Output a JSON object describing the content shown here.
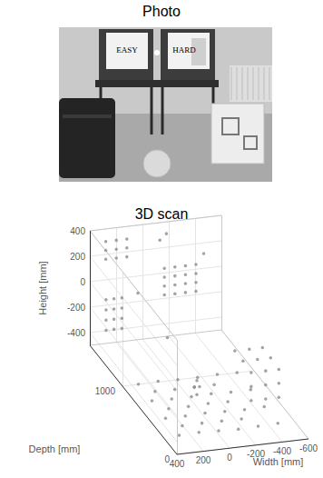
{
  "photo": {
    "title": "Photo",
    "board_labels": [
      "EASY",
      "HARD"
    ]
  },
  "chart_data": {
    "type": "scatter3d",
    "title": "3D scan",
    "xlabel": "Width [mm]",
    "ylabel": "Depth [mm]",
    "zlabel": "Height [mm]",
    "xlim": [
      -600,
      400
    ],
    "xticks": [
      400,
      200,
      0,
      -200,
      -400,
      -600
    ],
    "ylim": [
      0,
      1600
    ],
    "yticks": [
      0,
      1000
    ],
    "zlim": [
      -500,
      400
    ],
    "zticks": [
      -400,
      -200,
      0,
      200,
      400
    ],
    "grid": true,
    "color": "#8c8c8c",
    "marker": "circle",
    "points": [
      [
        300,
        200,
        -470
      ],
      [
        150,
        200,
        -465
      ],
      [
        0,
        200,
        -470
      ],
      [
        -150,
        200,
        -475
      ],
      [
        -300,
        200,
        -470
      ],
      [
        -450,
        200,
        -465
      ],
      [
        300,
        450,
        -470
      ],
      [
        150,
        450,
        -470
      ],
      [
        0,
        450,
        -465
      ],
      [
        -150,
        450,
        -470
      ],
      [
        -300,
        450,
        -475
      ],
      [
        -450,
        450,
        -470
      ],
      [
        300,
        700,
        -465
      ],
      [
        150,
        700,
        -470
      ],
      [
        0,
        700,
        -470
      ],
      [
        -150,
        700,
        -465
      ],
      [
        -300,
        700,
        -470
      ],
      [
        -450,
        700,
        -470
      ],
      [
        300,
        950,
        -470
      ],
      [
        150,
        950,
        -465
      ],
      [
        0,
        950,
        -470
      ],
      [
        -150,
        950,
        -470
      ],
      [
        -300,
        950,
        -465
      ],
      [
        -450,
        950,
        -470
      ],
      [
        225,
        325,
        -470
      ],
      [
        75,
        325,
        -468
      ],
      [
        -75,
        325,
        -470
      ],
      [
        -225,
        325,
        -472
      ],
      [
        225,
        575,
        -470
      ],
      [
        75,
        575,
        -470
      ],
      [
        -75,
        575,
        -466
      ],
      [
        -225,
        575,
        -470
      ],
      [
        225,
        825,
        -468
      ],
      [
        75,
        825,
        -470
      ],
      [
        -75,
        825,
        -470
      ],
      [
        -225,
        825,
        -470
      ],
      [
        380,
        1350,
        -250
      ],
      [
        320,
        1350,
        -250
      ],
      [
        260,
        1350,
        -250
      ],
      [
        380,
        1350,
        -170
      ],
      [
        320,
        1350,
        -170
      ],
      [
        260,
        1350,
        -170
      ],
      [
        380,
        1350,
        -90
      ],
      [
        320,
        1350,
        -90
      ],
      [
        260,
        1350,
        -90
      ],
      [
        380,
        1350,
        -10
      ],
      [
        320,
        1350,
        -10
      ],
      [
        260,
        1350,
        -10
      ],
      [
        320,
        1500,
        220
      ],
      [
        240,
        1500,
        220
      ],
      [
        160,
        1500,
        220
      ],
      [
        320,
        1500,
        290
      ],
      [
        240,
        1500,
        290
      ],
      [
        160,
        1500,
        290
      ],
      [
        320,
        1500,
        360
      ],
      [
        240,
        1500,
        360
      ],
      [
        160,
        1500,
        360
      ],
      [
        40,
        1100,
        120
      ],
      [
        -40,
        1100,
        120
      ],
      [
        -120,
        1100,
        120
      ],
      [
        -200,
        1100,
        120
      ],
      [
        40,
        1100,
        190
      ],
      [
        -40,
        1100,
        190
      ],
      [
        -120,
        1100,
        190
      ],
      [
        -200,
        1100,
        190
      ],
      [
        40,
        1100,
        260
      ],
      [
        -40,
        1100,
        260
      ],
      [
        -120,
        1100,
        260
      ],
      [
        -200,
        1100,
        260
      ],
      [
        40,
        1100,
        330
      ],
      [
        -40,
        1100,
        330
      ],
      [
        -120,
        1100,
        330
      ],
      [
        -200,
        1100,
        330
      ],
      [
        -330,
        400,
        -380
      ],
      [
        -440,
        400,
        -380
      ],
      [
        -540,
        400,
        -380
      ],
      [
        -330,
        400,
        -270
      ],
      [
        -440,
        400,
        -270
      ],
      [
        -540,
        400,
        -270
      ],
      [
        -330,
        400,
        -160
      ],
      [
        -440,
        400,
        -160
      ],
      [
        -540,
        400,
        -160
      ],
      [
        -330,
        550,
        -150
      ],
      [
        -440,
        550,
        -150
      ],
      [
        -540,
        550,
        -150
      ],
      [
        -330,
        700,
        -150
      ],
      [
        -440,
        700,
        -150
      ],
      [
        -540,
        700,
        -150
      ],
      [
        0,
        600,
        -400
      ],
      [
        20,
        600,
        -340
      ],
      [
        -20,
        600,
        -340
      ],
      [
        0,
        600,
        -290
      ],
      [
        -50,
        1400,
        380
      ],
      [
        -120,
        1450,
        395
      ],
      [
        -300,
        1200,
        350
      ],
      [
        200,
        1200,
        100
      ],
      [
        100,
        900,
        -100
      ]
    ]
  }
}
